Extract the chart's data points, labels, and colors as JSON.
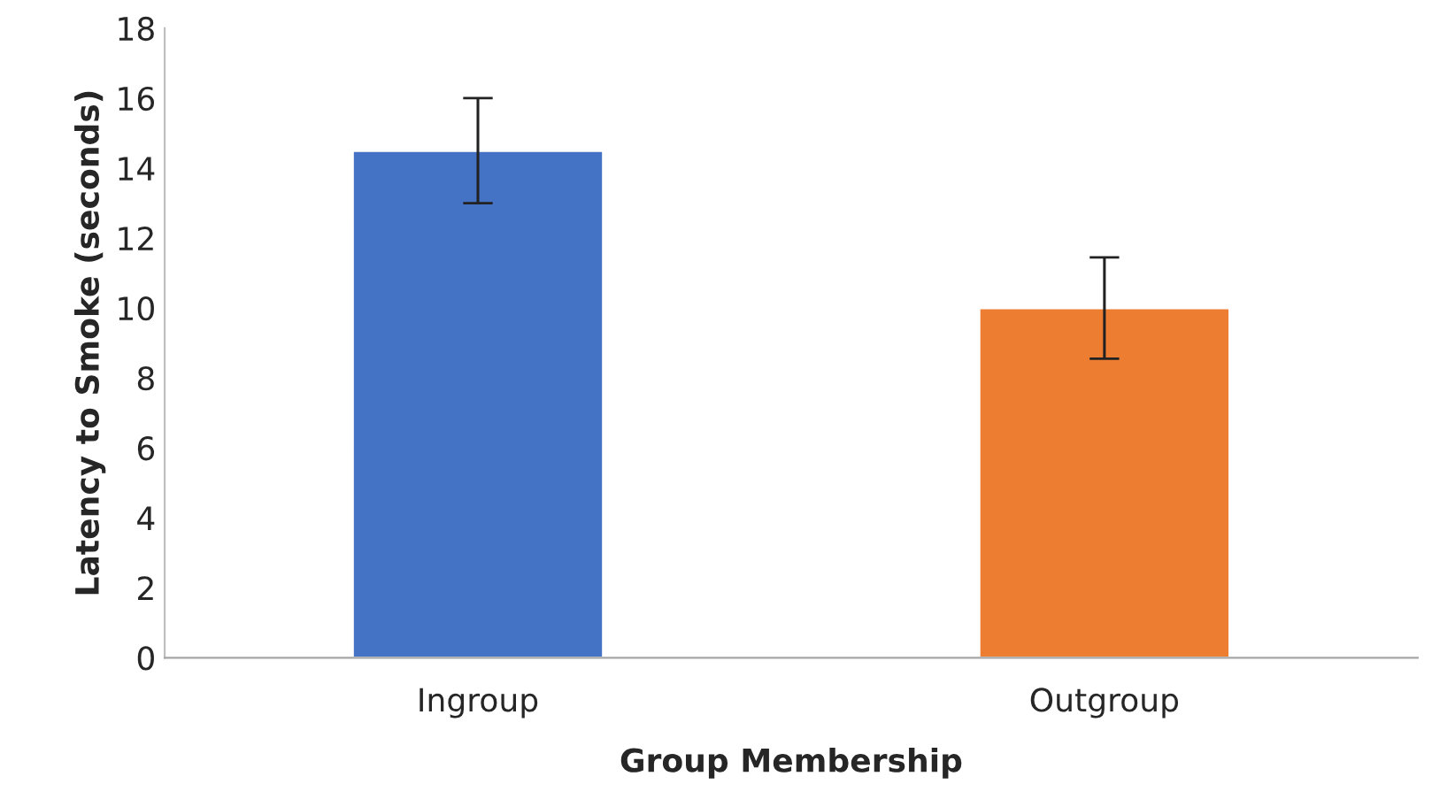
{
  "chart_data": {
    "type": "bar",
    "xlabel": "Group Membership",
    "ylabel": "Latency to Smoke (seconds)",
    "categories": [
      "Ingroup",
      "Outgroup"
    ],
    "values": [
      14.5,
      10.0
    ],
    "colors": [
      "#4472c4",
      "#ed7d31"
    ],
    "errors": [
      1.5,
      1.45
    ],
    "ylim": [
      0,
      18
    ],
    "yticks": [
      0,
      2,
      4,
      6,
      8,
      10,
      12,
      14,
      16,
      18
    ],
    "grid": false
  }
}
